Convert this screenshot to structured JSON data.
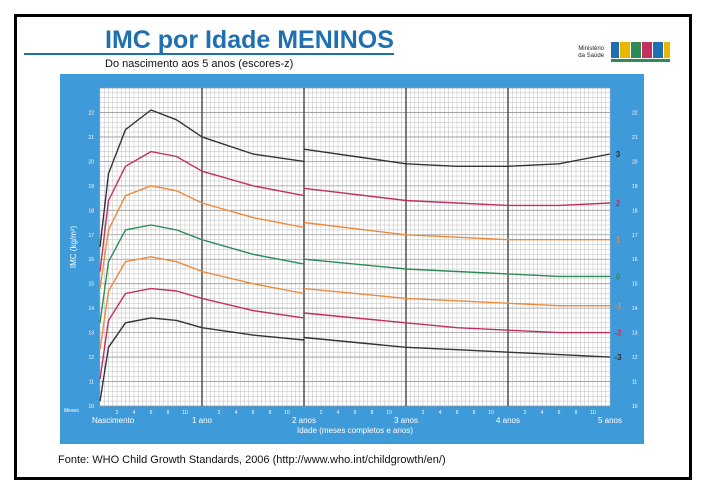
{
  "header": {
    "title": "IMC por Idade MENINOS",
    "subtitle": "Do nascimento aos 5 anos (escores-z)",
    "ministry_line1": "Ministério",
    "ministry_line2": "da Saúde",
    "logo_text": "BRASIL"
  },
  "footer": {
    "source": "Fonte: WHO Child Growth Standards, 2006 (http://www.who.int/childgrowth/en/)"
  },
  "colors": {
    "background_blue": "#3e9ad8",
    "grid_bg": "#ffffff",
    "grid_line": "#bdbdbd",
    "year_line": "#444444",
    "z_3": "#333333",
    "z_2": "#c2315e",
    "z_1": "#ee8a3a",
    "z_0": "#2e8b57"
  },
  "chart_data": {
    "type": "line",
    "title": "IMC por Idade MENINOS",
    "subtitle": "Do nascimento aos 5 anos (escores-z)",
    "xlabel": "Idade (meses completos e anos)",
    "ylabel": "IMC (kg/m²)",
    "xlim": [
      0,
      60
    ],
    "ylim": [
      10,
      23
    ],
    "grid": true,
    "months_label": "Meses",
    "x_ticks_major": [
      {
        "x": 0,
        "label": "Nascimento"
      },
      {
        "x": 12,
        "label": "1 ano"
      },
      {
        "x": 24,
        "label": "2 anos"
      },
      {
        "x": 36,
        "label": "3 anos"
      },
      {
        "x": 48,
        "label": "4 anos"
      },
      {
        "x": 60,
        "label": "5 anos"
      }
    ],
    "x_ticks_minor": [
      2,
      4,
      6,
      8,
      10
    ],
    "y_ticks": [
      10,
      11,
      12,
      13,
      14,
      15,
      16,
      17,
      18,
      19,
      20,
      21,
      22
    ],
    "series": [
      {
        "name": "3",
        "color": "#333333",
        "x": [
          0,
          1,
          3,
          6,
          9,
          12,
          18,
          24,
          24,
          36,
          42,
          48,
          54,
          60
        ],
        "y": [
          16.5,
          19.5,
          21.3,
          22.1,
          21.7,
          21.0,
          20.3,
          20.0,
          20.5,
          19.9,
          19.8,
          19.8,
          19.9,
          20.3
        ]
      },
      {
        "name": "2",
        "color": "#c2315e",
        "x": [
          0,
          1,
          3,
          6,
          9,
          12,
          18,
          24,
          24,
          36,
          42,
          48,
          54,
          60
        ],
        "y": [
          15.5,
          18.4,
          19.8,
          20.4,
          20.2,
          19.6,
          19.0,
          18.6,
          18.9,
          18.4,
          18.3,
          18.2,
          18.2,
          18.3
        ]
      },
      {
        "name": "1",
        "color": "#ee8a3a",
        "x": [
          0,
          1,
          3,
          6,
          9,
          12,
          18,
          24,
          24,
          36,
          42,
          48,
          54,
          60
        ],
        "y": [
          14.8,
          17.2,
          18.6,
          19.0,
          18.8,
          18.3,
          17.7,
          17.3,
          17.5,
          17.0,
          16.9,
          16.8,
          16.8,
          16.8
        ]
      },
      {
        "name": "0",
        "color": "#2e8b57",
        "x": [
          0,
          1,
          3,
          6,
          9,
          12,
          18,
          24,
          24,
          36,
          42,
          48,
          54,
          60
        ],
        "y": [
          13.4,
          15.9,
          17.2,
          17.4,
          17.2,
          16.8,
          16.2,
          15.8,
          16.0,
          15.6,
          15.5,
          15.4,
          15.3,
          15.3
        ]
      },
      {
        "name": "-1",
        "color": "#ee8a3a",
        "x": [
          0,
          1,
          3,
          6,
          9,
          12,
          18,
          24,
          24,
          36,
          42,
          48,
          54,
          60
        ],
        "y": [
          12.3,
          14.7,
          15.9,
          16.1,
          15.9,
          15.5,
          15.0,
          14.6,
          14.8,
          14.4,
          14.3,
          14.2,
          14.1,
          14.1
        ]
      },
      {
        "name": "-2",
        "color": "#c2315e",
        "x": [
          0,
          1,
          3,
          6,
          9,
          12,
          18,
          24,
          24,
          36,
          42,
          48,
          54,
          60
        ],
        "y": [
          11.1,
          13.5,
          14.6,
          14.8,
          14.7,
          14.4,
          13.9,
          13.6,
          13.8,
          13.4,
          13.2,
          13.1,
          13.0,
          13.0
        ]
      },
      {
        "name": "-3",
        "color": "#333333",
        "x": [
          0,
          1,
          3,
          6,
          9,
          12,
          18,
          24,
          24,
          36,
          42,
          48,
          54,
          60
        ],
        "y": [
          10.2,
          12.4,
          13.4,
          13.6,
          13.5,
          13.2,
          12.9,
          12.7,
          12.8,
          12.4,
          12.3,
          12.2,
          12.1,
          12.0
        ]
      }
    ]
  }
}
